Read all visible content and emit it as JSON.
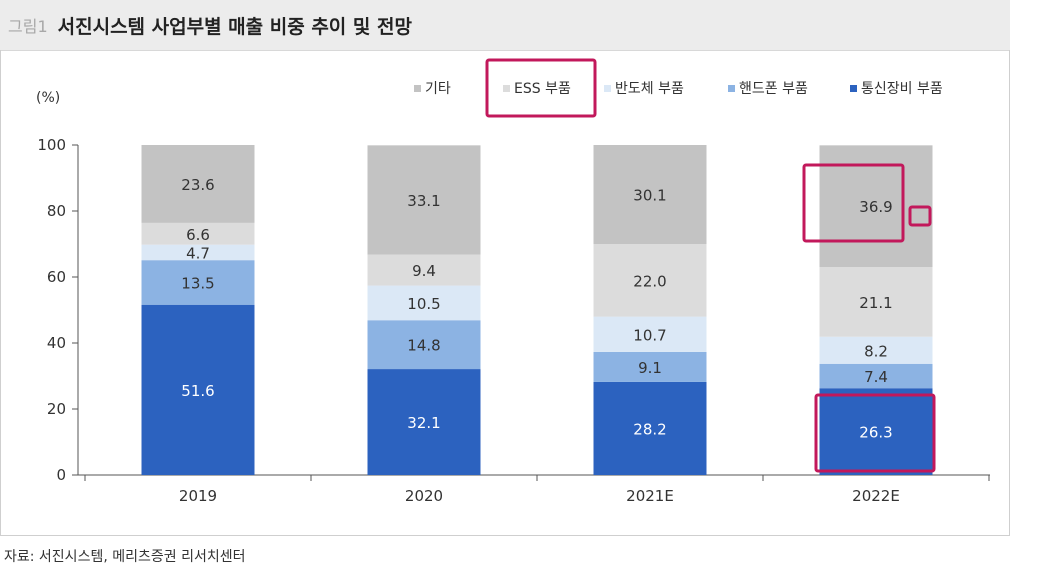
{
  "header": {
    "figure_number": "그림1",
    "title": "서진시스템 사업부별 매출 비중 추이 및 전망"
  },
  "footer": {
    "source": "자료: 서진시스템, 메리츠증권 리서치센터"
  },
  "chart_data": {
    "type": "bar",
    "stacked": true,
    "ylabel": "(%)",
    "ylim": [
      0,
      100
    ],
    "yticks": [
      0,
      20,
      40,
      60,
      80,
      100
    ],
    "categories": [
      "2019",
      "2020",
      "2021E",
      "2022E"
    ],
    "legend_position": "top-right",
    "series": [
      {
        "name": "통신장비 부품",
        "color": "#2c62bf",
        "values": [
          51.6,
          32.1,
          28.2,
          26.3
        ],
        "labels": [
          "51.6",
          "32.1",
          "28.2",
          "26.3"
        ]
      },
      {
        "name": "핸드폰 부품",
        "color": "#8cb3e3",
        "values": [
          13.5,
          14.8,
          9.1,
          7.4
        ],
        "labels": [
          "13.5",
          "14.8",
          "9.1",
          "7.4"
        ]
      },
      {
        "name": "반도체 부품",
        "color": "#dbe8f6",
        "values": [
          4.7,
          10.5,
          10.7,
          8.2
        ],
        "labels": [
          "4.7",
          "10.5",
          "10.7",
          "8.2"
        ]
      },
      {
        "name": "ESS 부품",
        "color": "#dcdcdc",
        "values": [
          6.6,
          9.4,
          22.0,
          21.1
        ],
        "labels": [
          "6.6",
          "9.4",
          "22.0",
          "21.1"
        ]
      },
      {
        "name": "기타",
        "color": "#c3c3c3",
        "values": [
          23.6,
          33.1,
          30.1,
          36.9
        ],
        "labels": [
          "23.6",
          "33.1",
          "30.1",
          "36.9"
        ]
      }
    ],
    "legend_order": [
      "기타",
      "ESS 부품",
      "반도체 부품",
      "핸드폰 부품",
      "통신장비 부품"
    ],
    "highlight_color": "#c2185b"
  }
}
